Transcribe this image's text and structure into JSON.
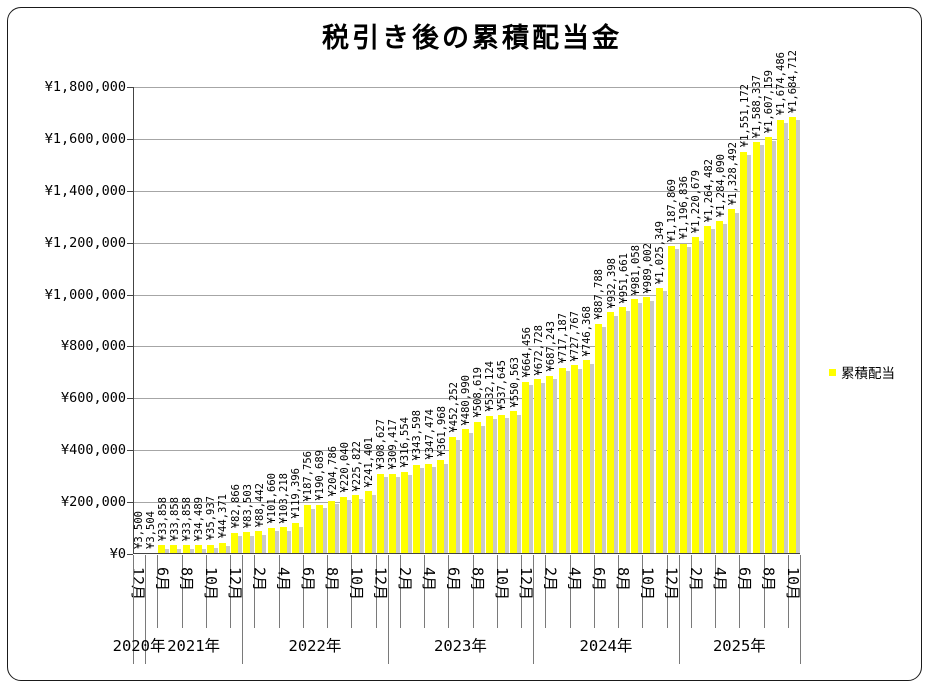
{
  "chart_data": {
    "type": "bar",
    "title": "税引き後の累積配当金",
    "legend": {
      "label": "累積配当",
      "marker_color": "#FFFF00",
      "position": "right"
    },
    "bar_color": "#FFFF00",
    "shadow_color": "#c9c9c9",
    "grid": true,
    "ylim": [
      0,
      1800000
    ],
    "ytick_step": 200000,
    "ytick_labels": [
      "¥0",
      "¥200,000",
      "¥400,000",
      "¥600,000",
      "¥800,000",
      "¥1,000,000",
      "¥1,200,000",
      "¥1,400,000",
      "¥1,600,000",
      "¥1,800,000"
    ],
    "year_groups": [
      {
        "label": "2020年",
        "bars": 1
      },
      {
        "label": "2021年",
        "bars": 8
      },
      {
        "label": "2022年",
        "bars": 12
      },
      {
        "label": "2023年",
        "bars": 12
      },
      {
        "label": "2024年",
        "bars": 12
      },
      {
        "label": "2025年",
        "bars": 10
      }
    ],
    "points": [
      {
        "tick": "12月",
        "value": 3500,
        "label": "¥3,500"
      },
      {
        "tick": "",
        "value": 3504,
        "label": "¥3,504"
      },
      {
        "tick": "6月",
        "value": 33858,
        "label": "¥33,858"
      },
      {
        "tick": "",
        "value": 33858,
        "label": "¥33,858"
      },
      {
        "tick": "8月",
        "value": 33858,
        "label": "¥33,858"
      },
      {
        "tick": "",
        "value": 34489,
        "label": "¥34,489"
      },
      {
        "tick": "10月",
        "value": 35937,
        "label": "¥35,937"
      },
      {
        "tick": "",
        "value": 44371,
        "label": "¥44,371"
      },
      {
        "tick": "12月",
        "value": 82866,
        "label": "¥82,866"
      },
      {
        "tick": "",
        "value": 83503,
        "label": "¥83,503"
      },
      {
        "tick": "2月",
        "value": 88442,
        "label": "¥88,442"
      },
      {
        "tick": "",
        "value": 101660,
        "label": "¥101,660"
      },
      {
        "tick": "4月",
        "value": 103218,
        "label": "¥103,218"
      },
      {
        "tick": "",
        "value": 119396,
        "label": "¥119,396"
      },
      {
        "tick": "6月",
        "value": 187756,
        "label": "¥187,756"
      },
      {
        "tick": "",
        "value": 190689,
        "label": "¥190,689"
      },
      {
        "tick": "8月",
        "value": 204786,
        "label": "¥204,786"
      },
      {
        "tick": "",
        "value": 220040,
        "label": "¥220,040"
      },
      {
        "tick": "10月",
        "value": 225822,
        "label": "¥225,822"
      },
      {
        "tick": "",
        "value": 241401,
        "label": "¥241,401"
      },
      {
        "tick": "12月",
        "value": 308627,
        "label": "¥308,627"
      },
      {
        "tick": "",
        "value": 309417,
        "label": "¥309,417"
      },
      {
        "tick": "2月",
        "value": 316554,
        "label": "¥316,554"
      },
      {
        "tick": "",
        "value": 343598,
        "label": "¥343,598"
      },
      {
        "tick": "4月",
        "value": 347474,
        "label": "¥347,474"
      },
      {
        "tick": "",
        "value": 361968,
        "label": "¥361,968"
      },
      {
        "tick": "6月",
        "value": 452252,
        "label": "¥452,252"
      },
      {
        "tick": "",
        "value": 480990,
        "label": "¥480,990"
      },
      {
        "tick": "8月",
        "value": 508619,
        "label": "¥508,619"
      },
      {
        "tick": "",
        "value": 532124,
        "label": "¥532,124"
      },
      {
        "tick": "10月",
        "value": 537645,
        "label": "¥537,645"
      },
      {
        "tick": "",
        "value": 550563,
        "label": "¥550,563"
      },
      {
        "tick": "12月",
        "value": 664456,
        "label": "¥664,456"
      },
      {
        "tick": "",
        "value": 672728,
        "label": "¥672,728"
      },
      {
        "tick": "2月",
        "value": 687243,
        "label": "¥687,243"
      },
      {
        "tick": "",
        "value": 717187,
        "label": "¥717,187"
      },
      {
        "tick": "4月",
        "value": 727767,
        "label": "¥727,767"
      },
      {
        "tick": "",
        "value": 746368,
        "label": "¥746,368"
      },
      {
        "tick": "6月",
        "value": 887788,
        "label": "¥887,788"
      },
      {
        "tick": "",
        "value": 932398,
        "label": "¥932,398"
      },
      {
        "tick": "8月",
        "value": 951661,
        "label": "¥951,661"
      },
      {
        "tick": "",
        "value": 981058,
        "label": "¥981,058"
      },
      {
        "tick": "10月",
        "value": 989002,
        "label": "¥989,002"
      },
      {
        "tick": "",
        "value": 1025349,
        "label": "¥1,025,349"
      },
      {
        "tick": "12月",
        "value": 1187869,
        "label": "¥1,187,869"
      },
      {
        "tick": "",
        "value": 1196836,
        "label": "¥1,196,836"
      },
      {
        "tick": "2月",
        "value": 1220679,
        "label": "¥1,220,679"
      },
      {
        "tick": "",
        "value": 1264482,
        "label": "¥1,264,482"
      },
      {
        "tick": "4月",
        "value": 1284090,
        "label": "¥1,284,090"
      },
      {
        "tick": "",
        "value": 1328492,
        "label": "¥1,328,492"
      },
      {
        "tick": "6月",
        "value": 1551172,
        "label": "¥1,551,172"
      },
      {
        "tick": "",
        "value": 1588337,
        "label": "¥1,588,337"
      },
      {
        "tick": "8月",
        "value": 1607159,
        "label": "¥1,607,159"
      },
      {
        "tick": "",
        "value": 1674486,
        "label": "¥1,674,486"
      },
      {
        "tick": "10月",
        "value": 1684712,
        "label": "¥1,684,712"
      }
    ]
  }
}
